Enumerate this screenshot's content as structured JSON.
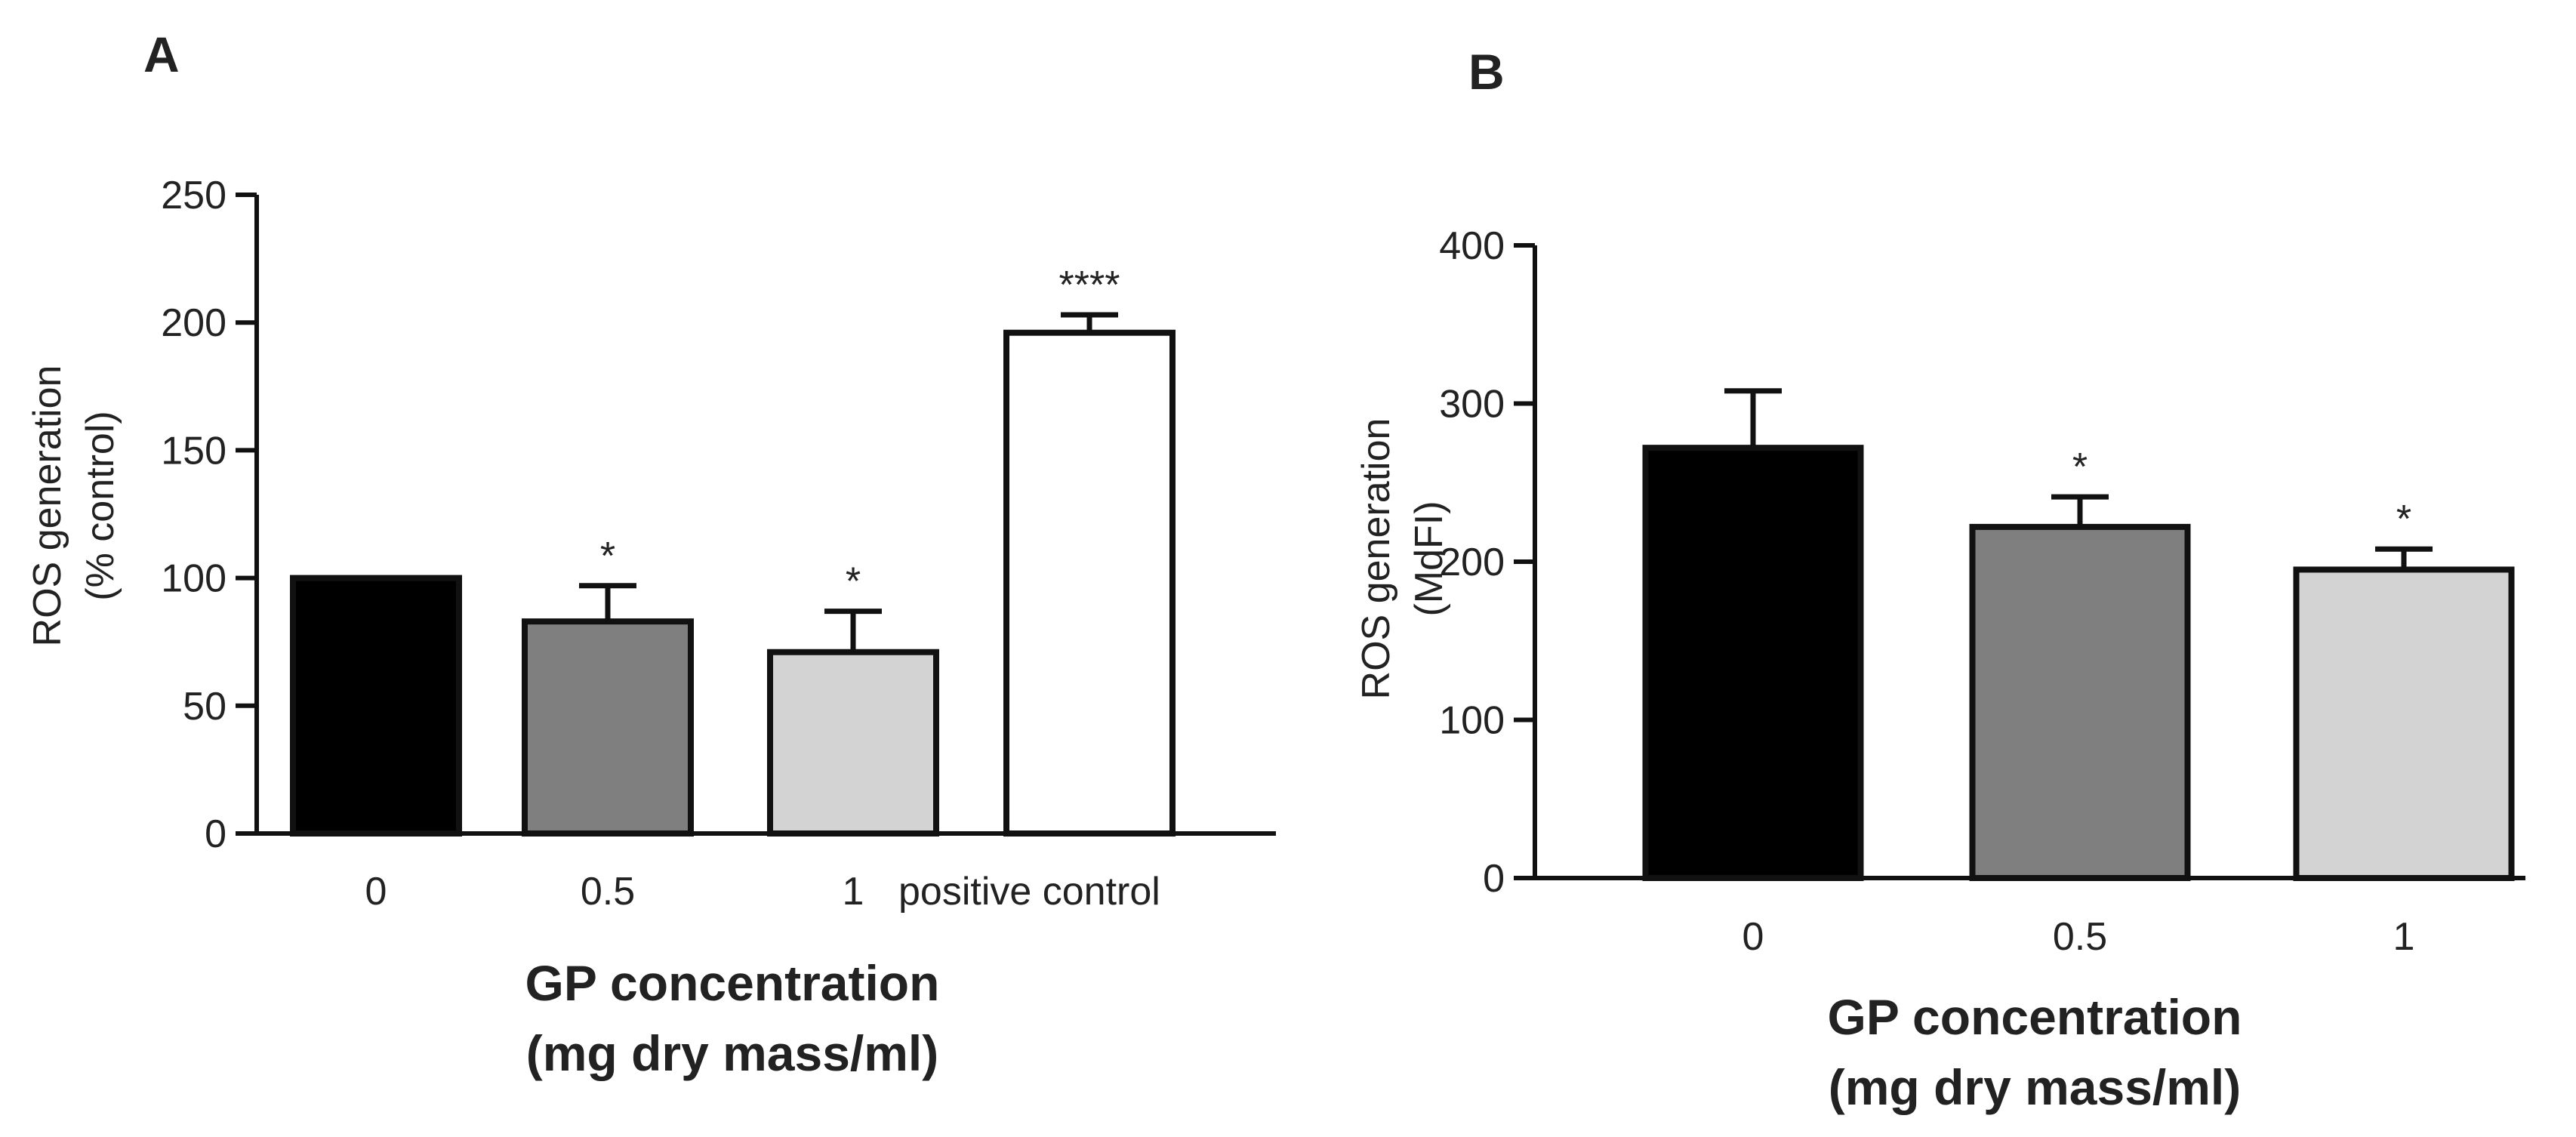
{
  "chart_data": [
    {
      "panel": "A",
      "type": "bar",
      "ylabel_lines": [
        "ROS generation",
        "(% control)"
      ],
      "xlabel_lines": [
        "GP concentration",
        "(mg dry mass/ml)"
      ],
      "ylim": [
        0,
        250
      ],
      "yticks": [
        "0",
        "50",
        "100",
        "150",
        "200",
        "250"
      ],
      "categories": [
        "0",
        "0.5",
        "1",
        "positive control"
      ],
      "values": [
        100,
        83,
        71,
        196
      ],
      "errors": [
        0,
        14,
        16,
        7
      ],
      "significance": [
        "",
        "*",
        "*",
        "****"
      ],
      "colors": [
        "#000000",
        "#7f7f7f",
        "#d3d3d3",
        "#ffffff"
      ]
    },
    {
      "panel": "B",
      "type": "bar",
      "ylabel_lines": [
        "ROS generation",
        "(MdFI)"
      ],
      "xlabel_lines": [
        "GP concentration",
        "(mg dry mass/ml)"
      ],
      "ylim": [
        0,
        400
      ],
      "yticks": [
        "0",
        "100",
        "200",
        "300",
        "400"
      ],
      "categories": [
        "0",
        "0.5",
        "1"
      ],
      "values": [
        272,
        222,
        195
      ],
      "errors": [
        36,
        19,
        13
      ],
      "significance": [
        "",
        "*",
        "*"
      ],
      "colors": [
        "#000000",
        "#7f7f7f",
        "#d3d3d3"
      ]
    }
  ]
}
